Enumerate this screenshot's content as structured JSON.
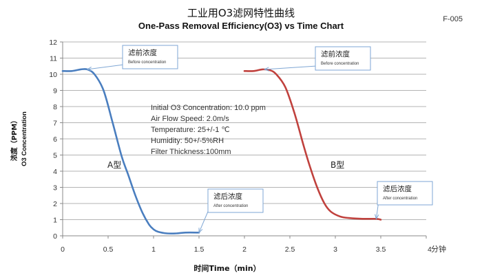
{
  "header": {
    "title_cn": "工业用O3滤网特性曲线",
    "title_en": "One-Pass Removal Efficiency(O3) vs Time Chart",
    "doc_code": "F-005"
  },
  "chart_data": {
    "type": "line",
    "ylabel_cn": "浓度（PPM）",
    "ylabel_en": "O3 Concentration",
    "xlabel": "时间Time（min）",
    "x_unit": "分钟",
    "xlim": [
      0,
      4
    ],
    "ylim": [
      0,
      12
    ],
    "x_ticks": [
      "0",
      "0.5",
      "1",
      "1.5",
      "2",
      "2.5",
      "3",
      "3.5",
      "4"
    ],
    "y_ticks": [
      "0",
      "1",
      "2",
      "3",
      "4",
      "5",
      "6",
      "7",
      "8",
      "9",
      "10",
      "11",
      "12"
    ],
    "grid": "horizontal",
    "series": [
      {
        "name": "A型",
        "color": "#4a7ebf",
        "x": [
          0,
          0.1,
          0.2,
          0.27,
          0.35,
          0.45,
          0.55,
          0.65,
          0.72,
          0.8,
          0.88,
          0.95,
          1.0,
          1.05,
          1.15,
          1.25,
          1.35,
          1.5
        ],
        "y": [
          10.2,
          10.2,
          10.3,
          10.3,
          10.0,
          9.0,
          7.0,
          4.9,
          3.8,
          2.5,
          1.4,
          0.7,
          0.4,
          0.25,
          0.15,
          0.15,
          0.2,
          0.2
        ]
      },
      {
        "name": "B型",
        "color": "#c0413d",
        "x": [
          2.0,
          2.1,
          2.2,
          2.28,
          2.35,
          2.45,
          2.55,
          2.65,
          2.72,
          2.8,
          2.88,
          2.95,
          3.05,
          3.15,
          3.3,
          3.45,
          3.5
        ],
        "y": [
          10.2,
          10.2,
          10.3,
          10.25,
          10.0,
          9.2,
          7.6,
          5.6,
          4.3,
          3.0,
          2.0,
          1.5,
          1.2,
          1.1,
          1.05,
          1.05,
          1.0
        ]
      }
    ],
    "annotations": [
      {
        "id": "a-before",
        "cn": "滤前浓度",
        "en": "Before concentration",
        "target": [
          0.27,
          10.3
        ]
      },
      {
        "id": "a-after",
        "cn": "滤后浓度",
        "en": "After concentration",
        "target": [
          1.5,
          0.2
        ]
      },
      {
        "id": "b-before",
        "cn": "滤前浓度",
        "en": "Before concentration",
        "target": [
          2.22,
          10.3
        ]
      },
      {
        "id": "b-after",
        "cn": "滤后浓度",
        "en": "After concentration",
        "target": [
          3.45,
          1.05
        ]
      }
    ],
    "conditions": [
      "Initial O3 Concentration: 10.0 ppm",
      "Air Flow Speed: 2.0m/s",
      "Temperature: 25+/-1 ℃",
      "Humidity: 50+/-5%RH",
      "Filter Thickness:100mm"
    ]
  }
}
